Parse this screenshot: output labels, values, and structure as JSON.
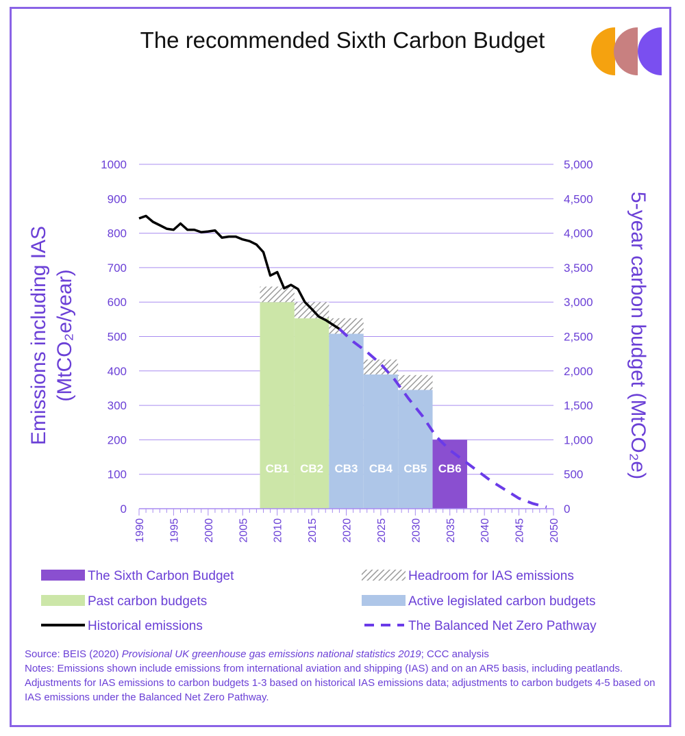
{
  "title": "The recommended Sixth Carbon Budget",
  "colors": {
    "frame": "#8a63e6",
    "axis_text": "#6a3fd6",
    "grid": "#a88cf0",
    "past_budgets": "#cce6a8",
    "active_budgets": "#aec6e8",
    "sixth_budget": "#8a4fd0",
    "headroom": "#9a9a9a",
    "historical": "#000000",
    "pathway": "#6a3be8",
    "logo": [
      "#f5a20f",
      "#c88080",
      "#7a4ff0"
    ]
  },
  "chart_data": {
    "type": "bar+line",
    "xlabel": "",
    "ylabel_left": "Emissions including IAS (MtCO₂e/year)",
    "ylabel_right": "5-year carbon budget (MtCO₂e)",
    "xlim": [
      1990,
      2050
    ],
    "ylim_left": [
      0,
      1000
    ],
    "ylim_right": [
      0,
      5000
    ],
    "x_ticks": [
      "1990",
      "1995",
      "2000",
      "2005",
      "2010",
      "2015",
      "2020",
      "2025",
      "2030",
      "2035",
      "2040",
      "2045",
      "2050"
    ],
    "y_ticks_left": [
      "0",
      "100",
      "200",
      "300",
      "400",
      "500",
      "600",
      "700",
      "800",
      "900",
      "1000"
    ],
    "y_ticks_right": [
      "0",
      "500",
      "1,000",
      "1,500",
      "2,000",
      "2,500",
      "3,000",
      "3,500",
      "4,000",
      "4,500",
      "5,000"
    ],
    "grid": true,
    "budgets": [
      {
        "label": "CB1",
        "start": 2008,
        "end": 2012,
        "annual": 600,
        "headroom_top": 645,
        "kind": "past"
      },
      {
        "label": "CB2",
        "start": 2013,
        "end": 2017,
        "annual": 553,
        "headroom_top": 600,
        "kind": "past"
      },
      {
        "label": "CB3",
        "start": 2018,
        "end": 2022,
        "annual": 508,
        "headroom_top": 553,
        "kind": "active"
      },
      {
        "label": "CB4",
        "start": 2023,
        "end": 2027,
        "annual": 390,
        "headroom_top": 433,
        "kind": "active"
      },
      {
        "label": "CB5",
        "start": 2028,
        "end": 2032,
        "annual": 345,
        "headroom_top": 388,
        "kind": "active"
      },
      {
        "label": "CB6",
        "start": 2033,
        "end": 2037,
        "annual": 200,
        "headroom_top": 200,
        "kind": "sixth"
      }
    ],
    "series": [
      {
        "name": "Historical emissions",
        "x": [
          1990,
          1991,
          1992,
          1993,
          1994,
          1995,
          1996,
          1997,
          1998,
          1999,
          2000,
          2001,
          2002,
          2003,
          2004,
          2005,
          2006,
          2007,
          2008,
          2009,
          2010,
          2011,
          2012,
          2013,
          2014,
          2015,
          2016,
          2017,
          2018,
          2019
        ],
        "y": [
          843,
          850,
          833,
          823,
          813,
          810,
          828,
          810,
          810,
          803,
          805,
          808,
          787,
          790,
          790,
          782,
          777,
          767,
          745,
          677,
          687,
          640,
          650,
          638,
          600,
          580,
          558,
          548,
          535,
          522
        ]
      },
      {
        "name": "The Balanced Net Zero Pathway",
        "x": [
          2019,
          2021,
          2023,
          2025,
          2027,
          2029,
          2031,
          2033,
          2035,
          2037,
          2039,
          2041,
          2043,
          2045,
          2047,
          2049
        ],
        "y": [
          522,
          485,
          455,
          420,
          375,
          320,
          270,
          210,
          170,
          140,
          110,
          80,
          55,
          30,
          15,
          5
        ]
      }
    ],
    "legend": {
      "placement": "bottom",
      "entries": [
        {
          "label": "The Sixth Carbon Budget",
          "symbol": "sixth"
        },
        {
          "label": "Headroom for IAS emissions",
          "symbol": "headroom"
        },
        {
          "label": "Past carbon budgets",
          "symbol": "past"
        },
        {
          "label": "Active legislated carbon budgets",
          "symbol": "active"
        },
        {
          "label": "Historical emissions",
          "symbol": "historical"
        },
        {
          "label": "The Balanced Net Zero Pathway",
          "symbol": "pathway"
        }
      ]
    }
  },
  "source": {
    "prefix": "Source: BEIS (2020) ",
    "title_italic": "Provisional UK greenhouse gas emissions national statistics 2019",
    "suffix": "; CCC analysis",
    "notes": "Notes: Emissions shown include emissions from international aviation and shipping (IAS) and on an AR5 basis, including peatlands. Adjustments for IAS emissions to carbon budgets 1-3 based on historical IAS emissions data; adjustments to carbon budgets 4-5 based on IAS emissions under the Balanced Net Zero Pathway."
  }
}
